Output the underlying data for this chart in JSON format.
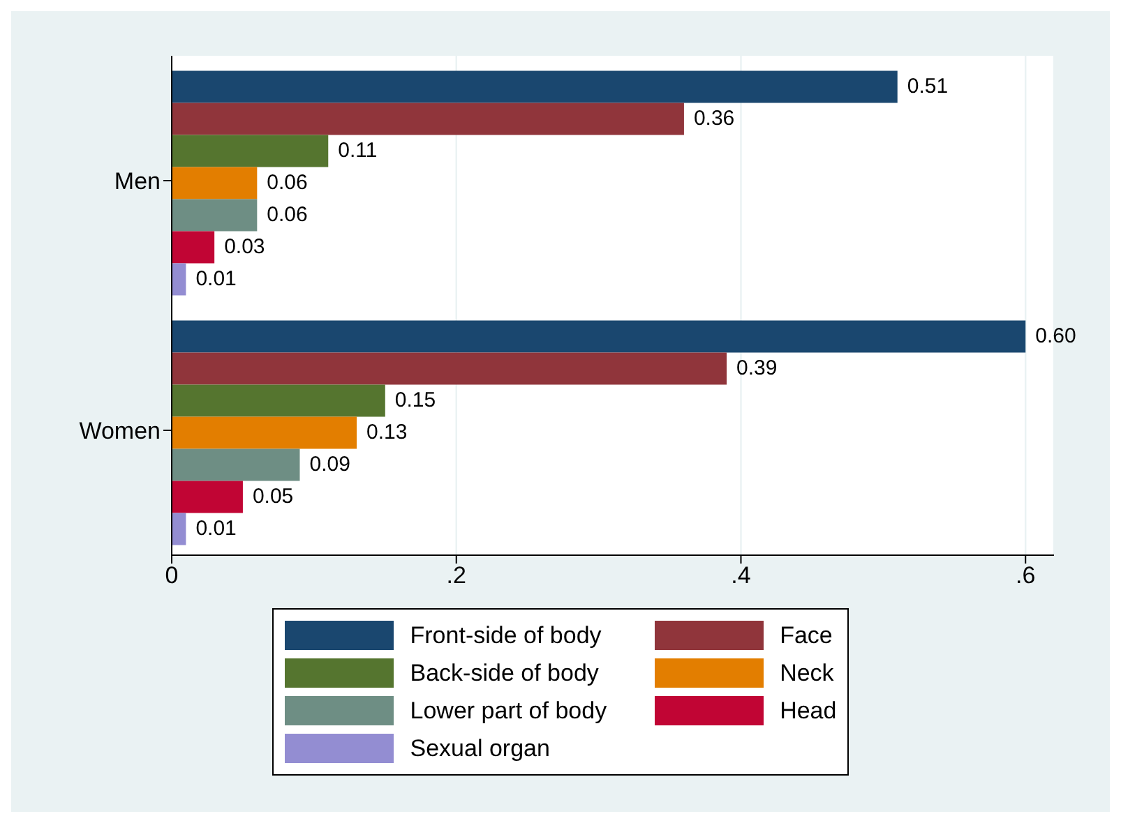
{
  "chart_data": {
    "type": "bar",
    "orientation": "horizontal",
    "categories": [
      "Men",
      "Women"
    ],
    "series": [
      {
        "name": "Front-side of body",
        "color": "#1a476f",
        "values": [
          0.51,
          0.6
        ],
        "value_labels": [
          "0.51",
          "0.60"
        ]
      },
      {
        "name": "Face",
        "color": "#90353b",
        "values": [
          0.36,
          0.39
        ],
        "value_labels": [
          "0.36",
          "0.39"
        ]
      },
      {
        "name": "Back-side of body",
        "color": "#55752f",
        "values": [
          0.11,
          0.15
        ],
        "value_labels": [
          "0.11",
          "0.15"
        ]
      },
      {
        "name": "Neck",
        "color": "#e37e00",
        "values": [
          0.06,
          0.13
        ],
        "value_labels": [
          "0.06",
          "0.13"
        ]
      },
      {
        "name": "Lower part of body",
        "color": "#6e8e84",
        "values": [
          0.06,
          0.09
        ],
        "value_labels": [
          "0.06",
          "0.09"
        ]
      },
      {
        "name": "Head",
        "color": "#c10534",
        "values": [
          0.03,
          0.05
        ],
        "value_labels": [
          "0.03",
          "0.05"
        ]
      },
      {
        "name": "Sexual organ",
        "color": "#938dd2",
        "values": [
          0.01,
          0.01
        ],
        "value_labels": [
          "0.01",
          "0.01"
        ]
      }
    ],
    "xlim": [
      0,
      0.62
    ],
    "xticks": [
      0,
      {
        "value": 0.2,
        "label": ".2"
      },
      {
        "value": 0.4,
        "label": ".4"
      },
      {
        "value": 0.6,
        "label": ".6"
      }
    ],
    "grid": "x",
    "legend": "bottom"
  }
}
